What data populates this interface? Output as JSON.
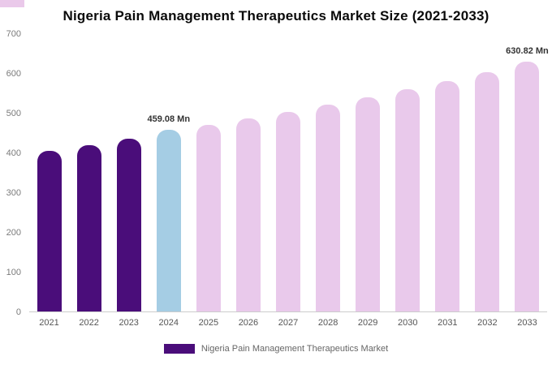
{
  "title": "Nigeria Pain Management Therapeutics Market Size (2021-2033)",
  "legend": {
    "label": "Nigeria Pain Management Therapeutics Market",
    "swatch_color": "#4a0d7a"
  },
  "colors": {
    "historical": "#4a0d7a",
    "highlight": "#a5cde4",
    "forecast": "#e9c9eb",
    "axis_line": "#cccccc",
    "tick_text": "#7b7b7b",
    "annotation_text": "#333333"
  },
  "chart_data": {
    "type": "bar",
    "title": "Nigeria Pain Management Therapeutics Market Size (2021-2033)",
    "xlabel": "",
    "ylabel": "",
    "unit": "Mn",
    "categories": [
      "2021",
      "2022",
      "2023",
      "2024",
      "2025",
      "2026",
      "2027",
      "2028",
      "2029",
      "2030",
      "2031",
      "2032",
      "2033"
    ],
    "values": [
      405,
      420,
      437,
      459.08,
      471,
      487,
      503,
      521,
      540,
      560,
      581,
      603,
      630.82
    ],
    "bar_colors": [
      "#4a0d7a",
      "#4a0d7a",
      "#4a0d7a",
      "#a5cde4",
      "#e9c9eb",
      "#e9c9eb",
      "#e9c9eb",
      "#e9c9eb",
      "#e9c9eb",
      "#e9c9eb",
      "#e9c9eb",
      "#e9c9eb",
      "#e9c9eb"
    ],
    "ylim": [
      0,
      700
    ],
    "yticks": [
      0,
      100,
      200,
      300,
      400,
      500,
      600,
      700
    ],
    "grid": false,
    "legend_position": "bottom",
    "annotations": [
      {
        "category": "2024",
        "text": "459.08 Mn"
      },
      {
        "category": "2033",
        "text": "630.82 Mn"
      }
    ]
  }
}
